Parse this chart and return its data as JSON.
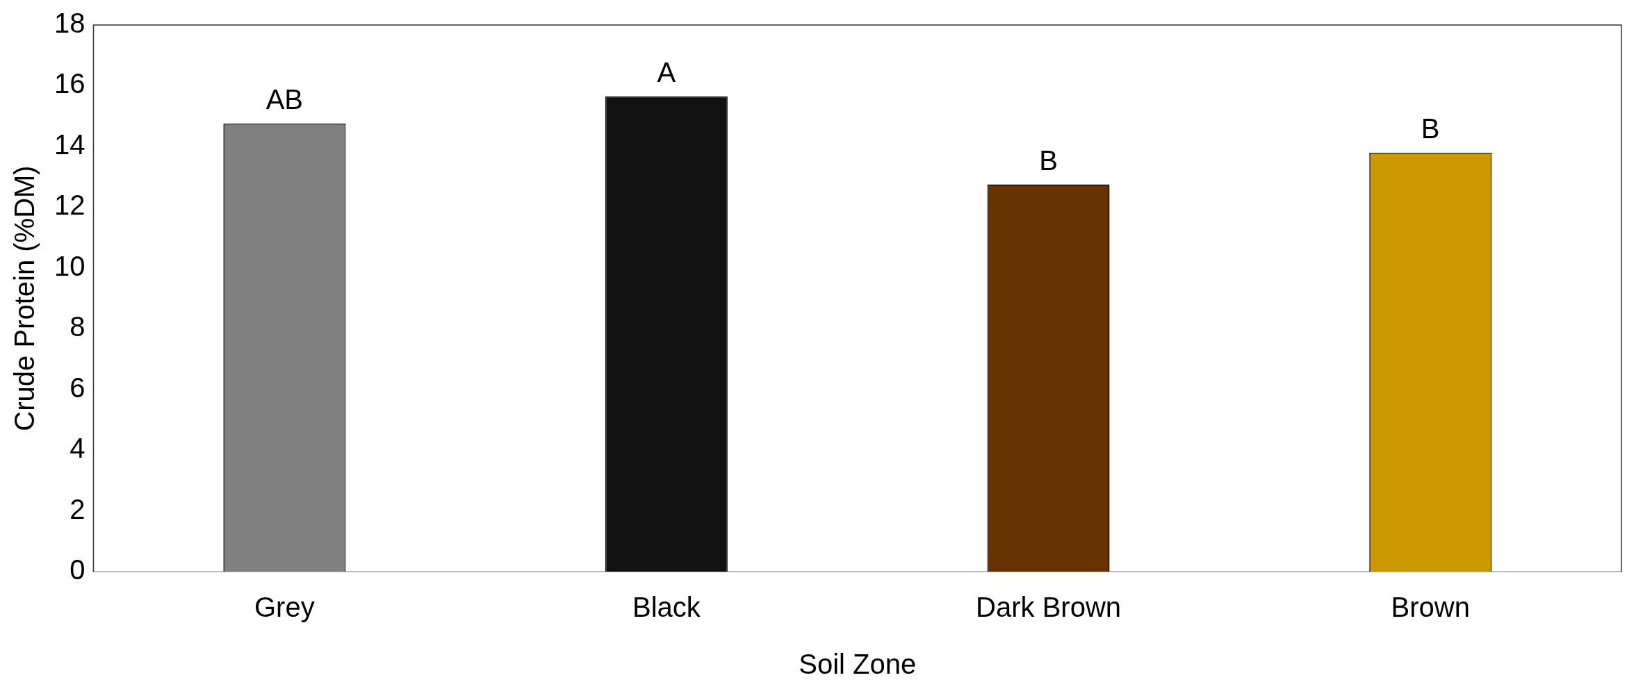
{
  "chart_data": {
    "type": "bar",
    "xlabel": "Soil Zone",
    "ylabel": "Crude Protein (%DM)",
    "categories": [
      "Grey",
      "Black",
      "Dark Brown",
      "Brown"
    ],
    "values": [
      14.75,
      15.65,
      12.75,
      13.8
    ],
    "colors": [
      "#808080",
      "#111111",
      "#663300",
      "#cc9900"
    ],
    "ylim": [
      0,
      18
    ],
    "yticks": [
      0,
      2,
      4,
      6,
      8,
      10,
      12,
      14,
      16,
      18
    ],
    "grid": false,
    "legend": false,
    "annotations": [
      {
        "text": "AB",
        "x": "Grey",
        "y": 14.75
      },
      {
        "text": "A",
        "x": "Black",
        "y": 15.65
      },
      {
        "text": "B",
        "x": "Dark Brown",
        "y": 12.75
      },
      {
        "text": "B",
        "x": "Brown",
        "y": 13.8
      }
    ]
  }
}
